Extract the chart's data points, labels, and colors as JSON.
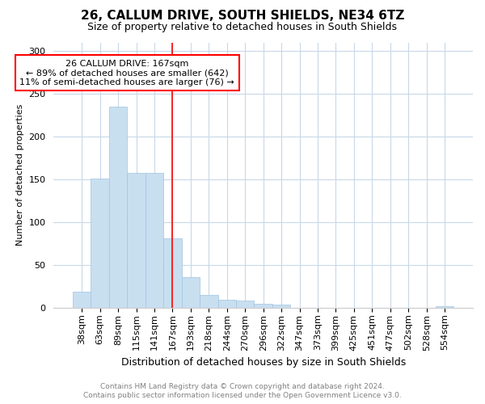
{
  "title": "26, CALLUM DRIVE, SOUTH SHIELDS, NE34 6TZ",
  "subtitle": "Size of property relative to detached houses in South Shields",
  "xlabel": "Distribution of detached houses by size in South Shields",
  "ylabel": "Number of detached properties",
  "footer_line1": "Contains HM Land Registry data © Crown copyright and database right 2024.",
  "footer_line2": "Contains public sector information licensed under the Open Government Licence v3.0.",
  "annotation_line1": "26 CALLUM DRIVE: 167sqm",
  "annotation_line2": "← 89% of detached houses are smaller (642)",
  "annotation_line3": "11% of semi-detached houses are larger (76) →",
  "vline_x_idx": 5,
  "bar_color": "#c8dff0",
  "bar_edge_color": "#a0c4e0",
  "vline_color": "red",
  "categories": [
    "38sqm",
    "63sqm",
    "89sqm",
    "115sqm",
    "141sqm",
    "167sqm",
    "193sqm",
    "218sqm",
    "244sqm",
    "270sqm",
    "296sqm",
    "322sqm",
    "347sqm",
    "373sqm",
    "399sqm",
    "425sqm",
    "451sqm",
    "477sqm",
    "502sqm",
    "528sqm",
    "554sqm"
  ],
  "values": [
    19,
    151,
    235,
    158,
    158,
    81,
    36,
    15,
    9,
    8,
    5,
    4,
    0,
    0,
    0,
    0,
    0,
    0,
    0,
    0,
    2
  ],
  "ylim": [
    0,
    310
  ],
  "yticks": [
    0,
    50,
    100,
    150,
    200,
    250,
    300
  ],
  "background_color": "#ffffff",
  "grid_color": "#c8d8e8",
  "title_fontsize": 11,
  "subtitle_fontsize": 9,
  "ylabel_fontsize": 8,
  "xlabel_fontsize": 9,
  "tick_fontsize": 8
}
